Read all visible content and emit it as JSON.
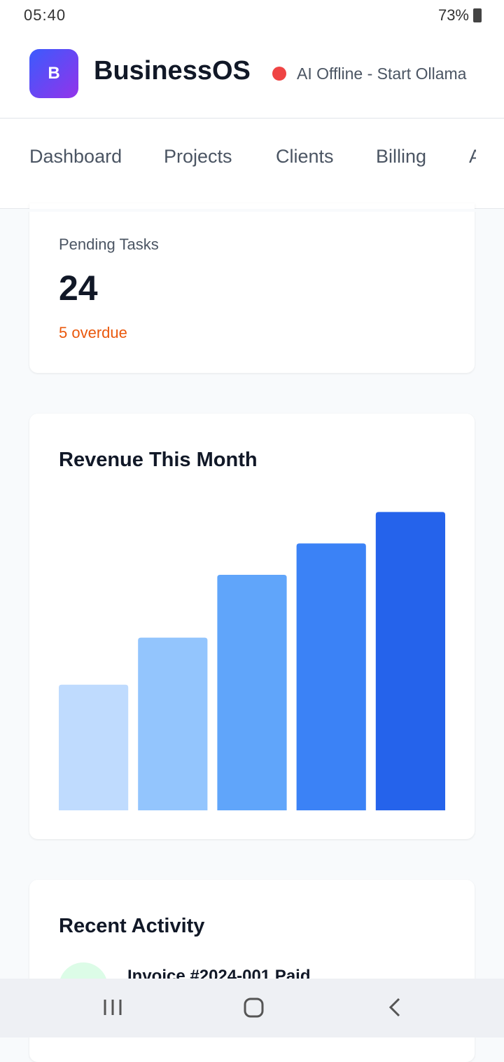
{
  "status_bar": {
    "time": "05:40",
    "battery": "73%"
  },
  "header": {
    "logo": "B",
    "title": "BusinessOS",
    "ai_status": "AI Offline - Start Ollama"
  },
  "nav": {
    "tabs": [
      "Dashboard",
      "Projects",
      "Clients",
      "Billing",
      "A"
    ]
  },
  "pending_card": {
    "label": "Pending Tasks",
    "value": "24",
    "note": "5 overdue"
  },
  "chart_data": {
    "type": "bar",
    "title": "Revenue This Month",
    "values": [
      40,
      55,
      75,
      85,
      95
    ],
    "colors": [
      "#bfdbfe",
      "#93c5fd",
      "#60a5fa",
      "#3b82f6",
      "#2563eb"
    ],
    "ylim": [
      0,
      100
    ]
  },
  "activity": {
    "title": "Recent Activity",
    "items": [
      "Invoice #2024-001 Paid"
    ]
  }
}
